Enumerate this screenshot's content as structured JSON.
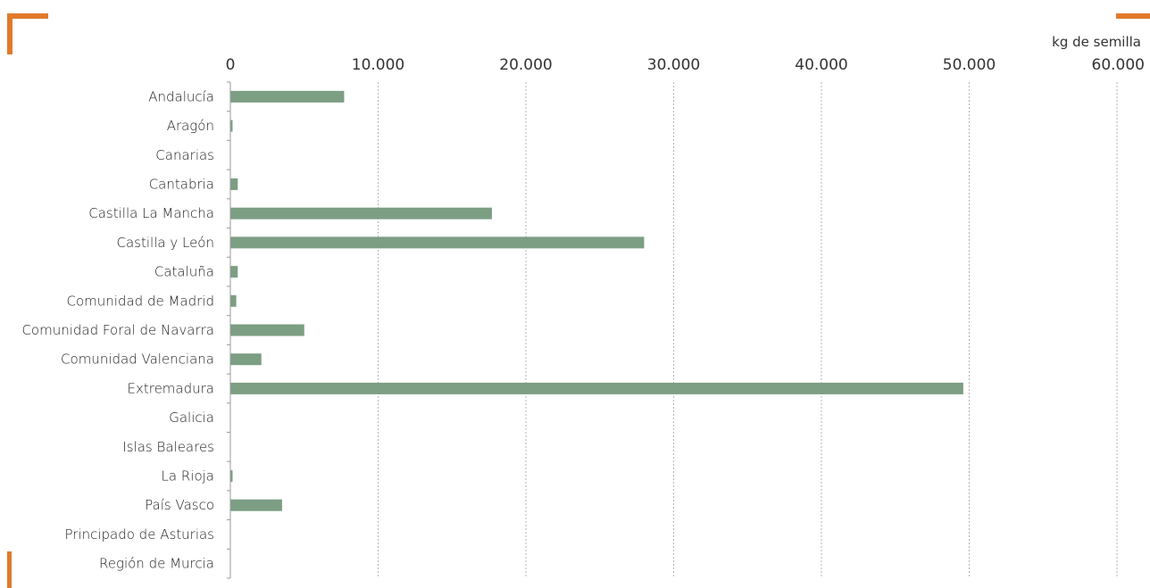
{
  "accent_colors": {
    "bar": "#7c9e83",
    "corner": "#e07a2c"
  },
  "chart_data": {
    "type": "bar",
    "orientation": "horizontal",
    "x_unit_label": "kg de semilla",
    "xlim": [
      0,
      60000
    ],
    "x_ticks": [
      0,
      10000,
      20000,
      30000,
      40000,
      50000,
      60000
    ],
    "x_tick_labels": [
      "0",
      "10.000",
      "20.000",
      "30.000",
      "40.000",
      "50.000",
      "60.000"
    ],
    "grid": "vertical dashed",
    "axis_position": "top",
    "categories": [
      "Andalucía",
      "Aragón",
      "Canarias",
      "Cantabria",
      "Castilla La Mancha",
      "Castilla y León",
      "Cataluña",
      "Comunidad de Madrid",
      "Comunidad Foral de Navarra",
      "Comunidad Valenciana",
      "Extremadura",
      "Galicia",
      "Islas Baleares",
      "La Rioja",
      "País Vasco",
      "Principado de Asturias",
      "Región de Murcia"
    ],
    "values": [
      7700,
      150,
      0,
      500,
      17700,
      28000,
      500,
      400,
      5000,
      2100,
      49600,
      0,
      0,
      150,
      3500,
      0,
      0
    ]
  }
}
